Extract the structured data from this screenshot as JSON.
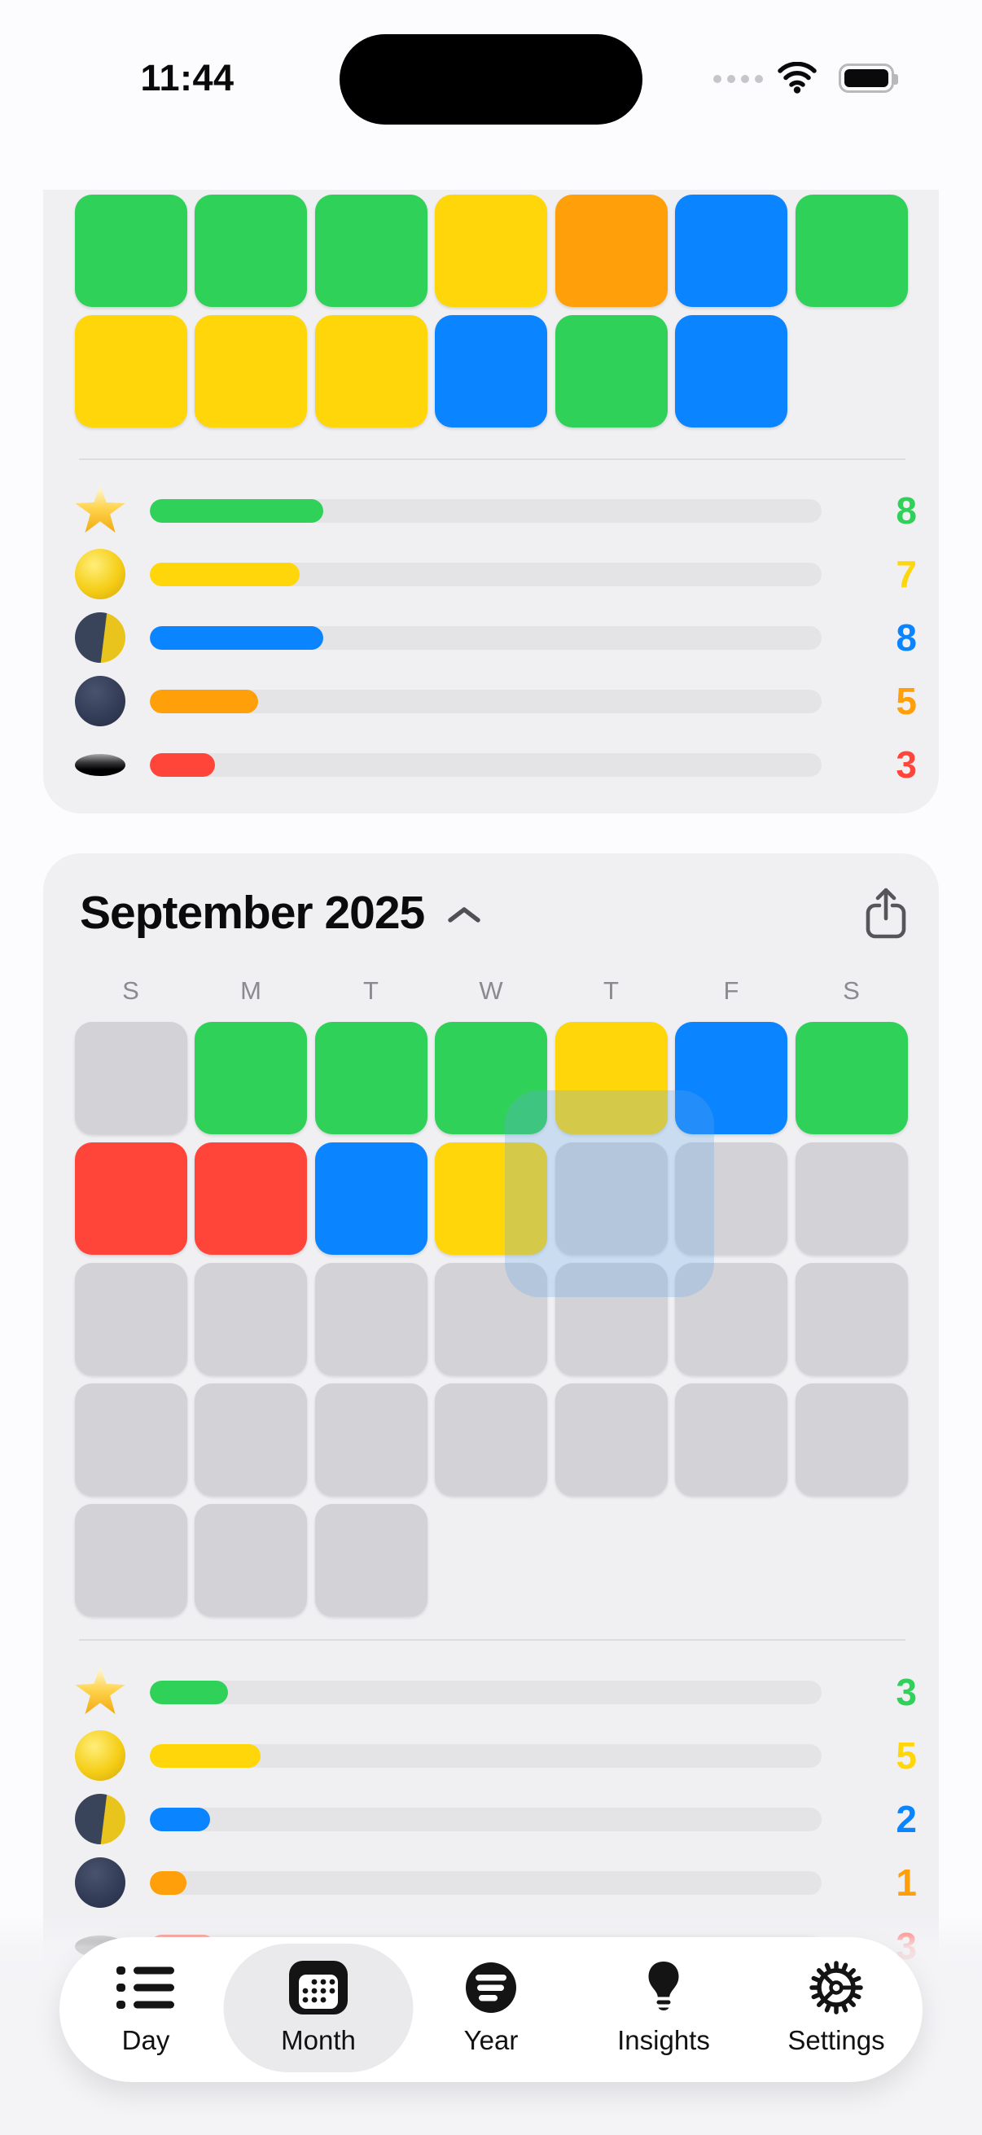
{
  "status_bar": {
    "time": "11:44"
  },
  "palette": {
    "green": "#30D158",
    "yellow": "#FFD60A",
    "orange": "#FF9F0A",
    "blue": "#0A84FF",
    "red": "#FF453A",
    "gray": "#D2D2D7"
  },
  "top_card": {
    "grid": [
      [
        "green",
        "green",
        "green",
        "yellow",
        "orange",
        "blue",
        "green"
      ],
      [
        "yellow",
        "yellow",
        "yellow",
        "blue",
        "green",
        "blue",
        null
      ]
    ],
    "stats": [
      {
        "icon": "star",
        "color": "green",
        "value": "8",
        "pct": 25.8
      },
      {
        "icon": "moon-full",
        "color": "yellow",
        "value": "7",
        "pct": 22.3
      },
      {
        "icon": "moon-half",
        "color": "blue",
        "value": "8",
        "pct": 25.8
      },
      {
        "icon": "moon-new",
        "color": "orange",
        "value": "5",
        "pct": 16.1
      },
      {
        "icon": "hole",
        "color": "red",
        "value": "3",
        "pct": 9.7
      }
    ]
  },
  "month_card": {
    "title": "September 2025",
    "day_headers": [
      "S",
      "M",
      "T",
      "W",
      "T",
      "F",
      "S"
    ],
    "grid": [
      [
        "gray",
        "green",
        "green",
        "green",
        "yellow",
        "blue",
        "green"
      ],
      [
        "red",
        "red",
        "blue",
        "yellow",
        "gray",
        "gray",
        "gray"
      ],
      [
        "gray",
        "gray",
        "gray",
        "gray",
        "gray",
        "gray",
        "gray"
      ],
      [
        "gray",
        "gray",
        "gray",
        "gray",
        "gray",
        "gray",
        "gray"
      ],
      [
        "gray",
        "gray",
        "gray",
        null,
        null,
        null,
        null
      ]
    ],
    "stats": [
      {
        "icon": "star",
        "color": "green",
        "value": "3",
        "pct": 11.6
      },
      {
        "icon": "moon-full",
        "color": "yellow",
        "value": "5",
        "pct": 16.5
      },
      {
        "icon": "moon-half",
        "color": "blue",
        "value": "2",
        "pct": 9.0
      },
      {
        "icon": "moon-new",
        "color": "orange",
        "value": "1",
        "pct": 5.5
      },
      {
        "icon": "hole",
        "color": "red",
        "value": "3",
        "pct": 9.7
      }
    ]
  },
  "tab_bar": {
    "active": "month",
    "tabs": [
      {
        "id": "day",
        "label": "Day"
      },
      {
        "id": "month",
        "label": "Month"
      },
      {
        "id": "year",
        "label": "Year"
      },
      {
        "id": "insights",
        "label": "Insights"
      },
      {
        "id": "settings",
        "label": "Settings"
      }
    ]
  }
}
